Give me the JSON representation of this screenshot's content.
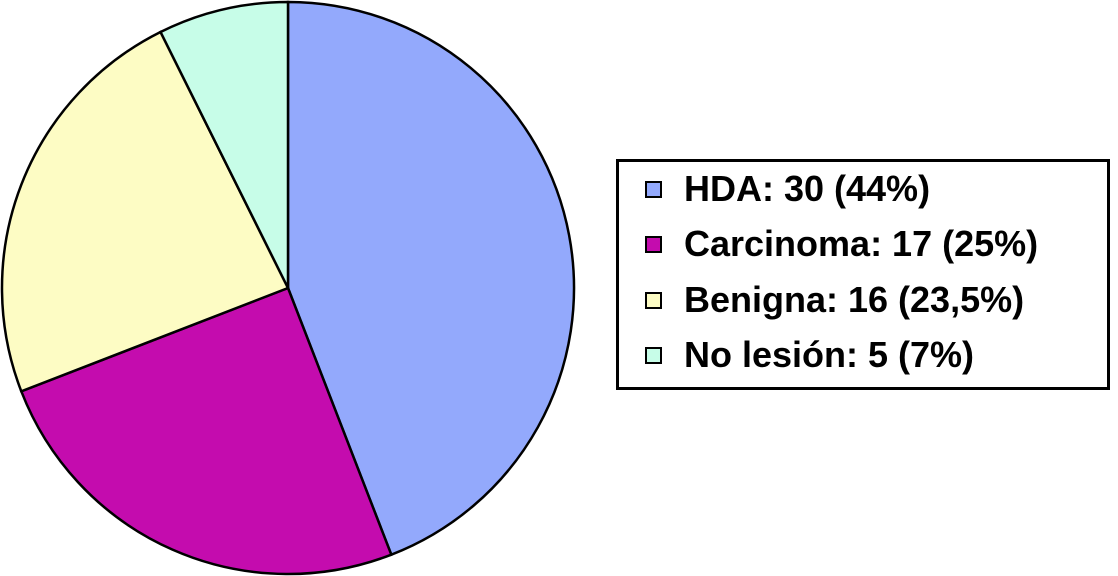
{
  "chart_data": {
    "type": "pie",
    "title": "",
    "legend_position": "right",
    "slices": [
      {
        "name": "HDA",
        "value": 30,
        "percent": "44%",
        "label": "HDA: 30 (44%)",
        "color": "#93a9fc"
      },
      {
        "name": "Carcinoma",
        "value": 17,
        "percent": "25%",
        "label": "Carcinoma: 17 (25%)",
        "color": "#c40cae"
      },
      {
        "name": "Benigna",
        "value": 16,
        "percent": "23,5%",
        "label": "Benigna: 16 (23,5%)",
        "color": "#fdfcc4"
      },
      {
        "name": "No lesión",
        "value": 5,
        "percent": "7%",
        "label": "No lesión: 5 (7%)",
        "color": "#c7fde8"
      }
    ]
  },
  "legend": {
    "items": [
      {
        "label": "HDA: 30 (44%)",
        "color": "#93a9fc"
      },
      {
        "label": "Carcinoma: 17 (25%)",
        "color": "#c40cae"
      },
      {
        "label": "Benigna: 16 (23,5%)",
        "color": "#fdfcc4"
      },
      {
        "label": "No lesión: 5 (7%)",
        "color": "#c7fde8"
      }
    ]
  }
}
